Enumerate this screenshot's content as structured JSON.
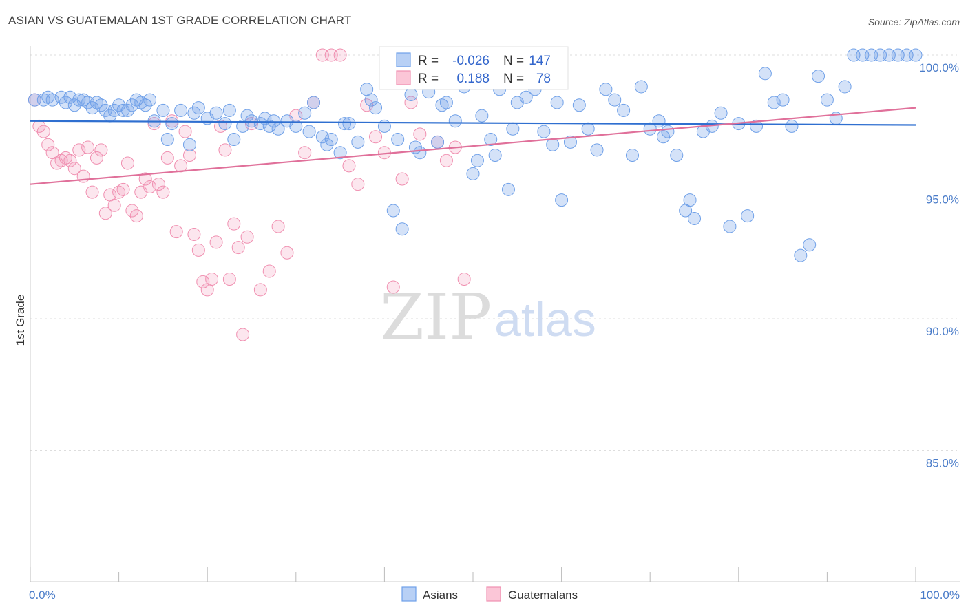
{
  "title": "ASIAN VS GUATEMALAN 1ST GRADE CORRELATION CHART",
  "source": "Source: ZipAtlas.com",
  "watermark": {
    "zip": "ZIP",
    "atlas": "atlas"
  },
  "stats": {
    "r_label": "R =",
    "n_label": "N =",
    "rows": [
      {
        "r": "-0.026",
        "n": "147"
      },
      {
        "r": "0.188",
        "n": "78"
      }
    ]
  },
  "chart_data": {
    "type": "scatter",
    "title": "ASIAN VS GUATEMALAN 1ST GRADE CORRELATION CHART",
    "xlabel": "",
    "ylabel": "1st Grade",
    "xlim": [
      0,
      100
    ],
    "ylim": [
      80.5,
      100.4
    ],
    "y_ticks": [
      85,
      90,
      95,
      100
    ],
    "y_tick_labels": [
      "85.0%",
      "90.0%",
      "95.0%",
      "100.0%"
    ],
    "x_tick_labels": [
      "0.0%",
      "100.0%"
    ],
    "grid": true,
    "legend_position": "bottom-center",
    "colors": {
      "asians": "#6fa0e8",
      "guatemalans": "#f08fb0",
      "asians_line": "#2f6fd0",
      "guatemalans_line": "#e0709a",
      "tick_label": "#4a7cc9"
    },
    "series": [
      {
        "name": "Asians",
        "r": -0.026,
        "n": 147,
        "trend": [
          [
            0,
            97.5
          ],
          [
            100,
            97.35
          ]
        ],
        "points": [
          [
            0.5,
            98.3
          ],
          [
            1.5,
            98.3
          ],
          [
            2,
            98.4
          ],
          [
            2.5,
            98.3
          ],
          [
            3.5,
            98.4
          ],
          [
            4,
            98.2
          ],
          [
            4.5,
            98.4
          ],
          [
            5,
            98.1
          ],
          [
            5.5,
            98.3
          ],
          [
            6,
            98.3
          ],
          [
            6.5,
            98.2
          ],
          [
            7,
            98
          ],
          [
            7.5,
            98.2
          ],
          [
            8,
            98.1
          ],
          [
            8.5,
            97.9
          ],
          [
            9,
            97.7
          ],
          [
            9.5,
            97.9
          ],
          [
            10,
            98.1
          ],
          [
            10.5,
            97.9
          ],
          [
            11,
            97.9
          ],
          [
            11.5,
            98.1
          ],
          [
            12,
            98.3
          ],
          [
            12.5,
            98.2
          ],
          [
            13,
            98.1
          ],
          [
            13.5,
            98.3
          ],
          [
            14,
            97.5
          ],
          [
            15,
            97.9
          ],
          [
            15.5,
            96.8
          ],
          [
            16,
            97.4
          ],
          [
            17,
            97.9
          ],
          [
            18,
            96.6
          ],
          [
            18.5,
            97.8
          ],
          [
            19,
            98
          ],
          [
            20,
            97.6
          ],
          [
            21,
            97.8
          ],
          [
            22,
            97.4
          ],
          [
            22.5,
            97.9
          ],
          [
            23,
            96.8
          ],
          [
            24,
            97.3
          ],
          [
            24.5,
            97.7
          ],
          [
            25,
            97.5
          ],
          [
            26,
            97.4
          ],
          [
            26.5,
            97.6
          ],
          [
            27,
            97.3
          ],
          [
            27.5,
            97.5
          ],
          [
            28,
            97.2
          ],
          [
            29,
            97.5
          ],
          [
            30,
            97.3
          ],
          [
            31,
            97.8
          ],
          [
            31.5,
            97.1
          ],
          [
            32,
            98.2
          ],
          [
            33,
            96.9
          ],
          [
            33.5,
            96.6
          ],
          [
            34,
            96.8
          ],
          [
            35,
            96.3
          ],
          [
            35.5,
            97.4
          ],
          [
            36,
            97.4
          ],
          [
            37,
            96.7
          ],
          [
            38,
            98.7
          ],
          [
            38.5,
            98.3
          ],
          [
            39,
            98
          ],
          [
            40,
            97.3
          ],
          [
            41,
            94.1
          ],
          [
            41.5,
            96.8
          ],
          [
            42,
            93.4
          ],
          [
            43,
            98.5
          ],
          [
            43.5,
            96.5
          ],
          [
            44,
            96.3
          ],
          [
            45,
            98.6
          ],
          [
            46,
            96.7
          ],
          [
            46.5,
            98.1
          ],
          [
            47,
            98.2
          ],
          [
            48,
            97.5
          ],
          [
            49,
            98.8
          ],
          [
            50,
            95.5
          ],
          [
            50.5,
            96
          ],
          [
            51,
            97.7
          ],
          [
            52,
            96.8
          ],
          [
            52.5,
            96.2
          ],
          [
            53,
            98.7
          ],
          [
            54,
            94.9
          ],
          [
            54.5,
            97.2
          ],
          [
            55,
            98.2
          ],
          [
            56,
            98.4
          ],
          [
            57,
            98.7
          ],
          [
            58,
            97.1
          ],
          [
            59,
            96.6
          ],
          [
            59.5,
            98.2
          ],
          [
            60,
            94.5
          ],
          [
            61,
            96.7
          ],
          [
            62,
            98.1
          ],
          [
            63,
            97.2
          ],
          [
            64,
            96.4
          ],
          [
            65,
            98.7
          ],
          [
            66,
            98.3
          ],
          [
            67,
            97.9
          ],
          [
            68,
            96.2
          ],
          [
            69,
            98.8
          ],
          [
            70,
            97.2
          ],
          [
            71,
            97.5
          ],
          [
            71.5,
            96.9
          ],
          [
            72,
            97.1
          ],
          [
            73,
            96.2
          ],
          [
            74,
            94.1
          ],
          [
            74.5,
            94.5
          ],
          [
            75,
            93.8
          ],
          [
            76,
            97.1
          ],
          [
            77,
            97.3
          ],
          [
            78,
            97.8
          ],
          [
            79,
            93.5
          ],
          [
            80,
            97.4
          ],
          [
            81,
            93.9
          ],
          [
            82,
            97.3
          ],
          [
            83,
            99.3
          ],
          [
            84,
            98.2
          ],
          [
            85,
            98.3
          ],
          [
            86,
            97.3
          ],
          [
            87,
            92.4
          ],
          [
            88,
            92.8
          ],
          [
            89,
            99.2
          ],
          [
            90,
            98.3
          ],
          [
            91,
            97.6
          ],
          [
            92,
            98.8
          ],
          [
            93,
            100
          ],
          [
            94,
            100
          ],
          [
            95,
            100
          ],
          [
            96,
            100
          ],
          [
            97,
            100
          ],
          [
            98,
            100
          ],
          [
            99,
            100
          ],
          [
            100,
            100
          ]
        ]
      },
      {
        "name": "Guatemalans",
        "r": 0.188,
        "n": 78,
        "trend": [
          [
            0,
            95.1
          ],
          [
            100,
            98
          ]
        ],
        "points": [
          [
            0.5,
            98.3
          ],
          [
            1,
            97.3
          ],
          [
            1.5,
            97.1
          ],
          [
            2,
            96.6
          ],
          [
            2.5,
            96.3
          ],
          [
            3,
            95.9
          ],
          [
            3.5,
            96
          ],
          [
            4,
            96.1
          ],
          [
            4.5,
            96
          ],
          [
            5,
            95.7
          ],
          [
            5.5,
            96.4
          ],
          [
            6,
            95.4
          ],
          [
            6.5,
            96.5
          ],
          [
            7,
            94.8
          ],
          [
            7.5,
            96.1
          ],
          [
            8,
            96.4
          ],
          [
            8.5,
            94
          ],
          [
            9,
            94.7
          ],
          [
            9.5,
            94.3
          ],
          [
            10,
            94.8
          ],
          [
            10.5,
            94.9
          ],
          [
            11,
            95.9
          ],
          [
            11.5,
            94.1
          ],
          [
            12,
            93.9
          ],
          [
            12.5,
            94.8
          ],
          [
            13,
            95.3
          ],
          [
            13.5,
            95
          ],
          [
            14,
            97.4
          ],
          [
            14.5,
            95.1
          ],
          [
            15,
            94.8
          ],
          [
            15.5,
            96.1
          ],
          [
            16,
            97.5
          ],
          [
            16.5,
            93.3
          ],
          [
            17,
            95.8
          ],
          [
            17.5,
            97.1
          ],
          [
            18,
            96.2
          ],
          [
            18.5,
            93.2
          ],
          [
            19,
            92.6
          ],
          [
            19.5,
            91.4
          ],
          [
            20,
            91.1
          ],
          [
            20.5,
            91.5
          ],
          [
            21,
            92.9
          ],
          [
            21.5,
            97.3
          ],
          [
            22,
            96.4
          ],
          [
            22.5,
            91.5
          ],
          [
            23,
            93.6
          ],
          [
            23.5,
            92.7
          ],
          [
            24,
            89.4
          ],
          [
            24.5,
            93.1
          ],
          [
            25,
            97.4
          ],
          [
            26,
            91.1
          ],
          [
            27,
            91.8
          ],
          [
            28,
            93.5
          ],
          [
            29,
            92.5
          ],
          [
            30,
            97.7
          ],
          [
            31,
            96.3
          ],
          [
            32,
            98.2
          ],
          [
            33,
            100
          ],
          [
            34,
            100
          ],
          [
            35,
            100
          ],
          [
            36,
            95.8
          ],
          [
            37,
            95.1
          ],
          [
            38,
            98.1
          ],
          [
            39,
            96.9
          ],
          [
            40,
            96.3
          ],
          [
            41,
            91.2
          ],
          [
            42,
            95.3
          ],
          [
            43,
            98.2
          ],
          [
            44,
            97
          ],
          [
            45,
            99.1
          ],
          [
            46,
            96.7
          ],
          [
            47,
            96
          ],
          [
            48,
            96.5
          ],
          [
            49,
            91.5
          ],
          [
            50,
            100
          ],
          [
            52,
            100
          ],
          [
            55,
            100
          ],
          [
            58,
            100
          ]
        ]
      }
    ]
  },
  "legend": {
    "items": [
      "Asians",
      "Guatemalans"
    ]
  }
}
